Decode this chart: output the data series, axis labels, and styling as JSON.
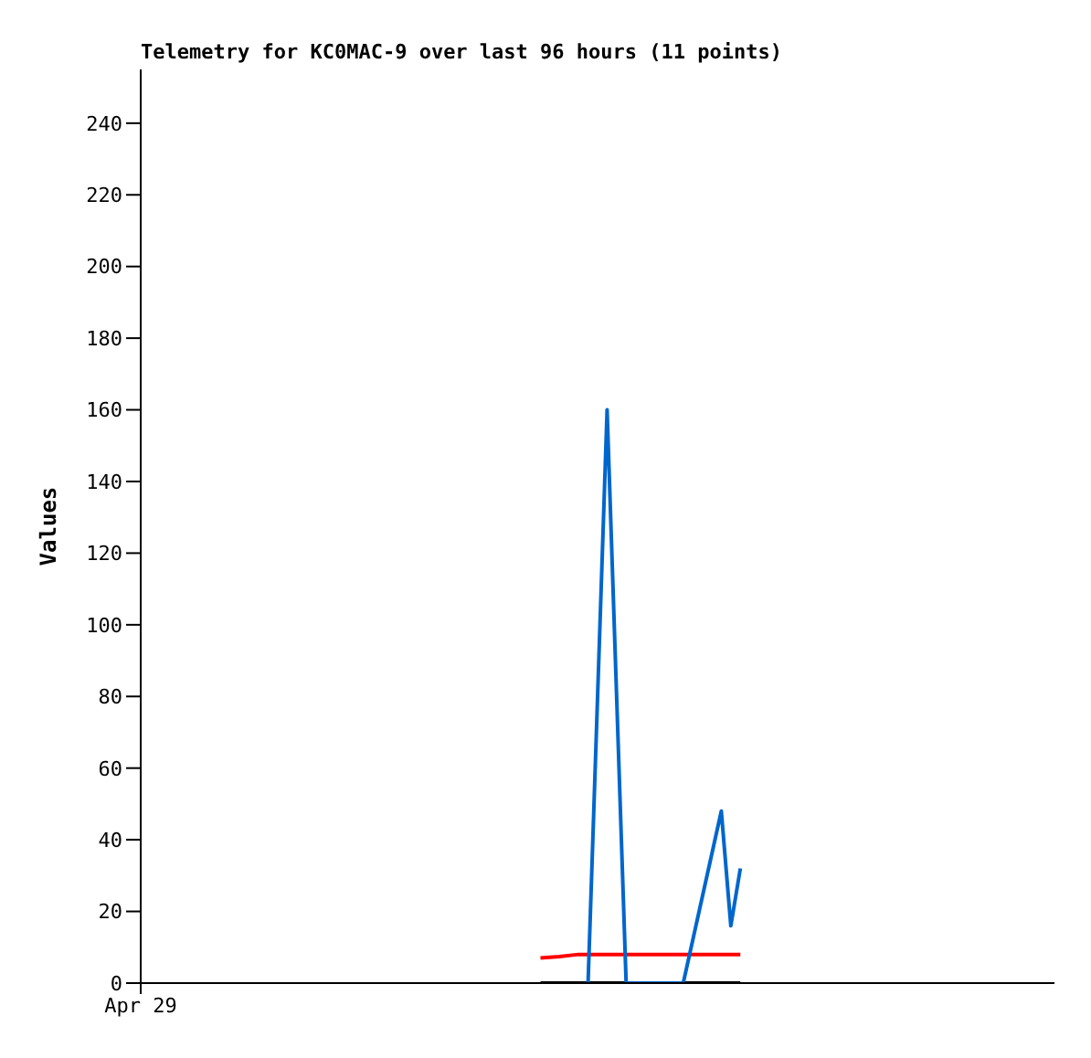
{
  "chart_data": {
    "type": "line",
    "title": "Telemetry for KC0MAC-9 over last 96 hours (11 points)",
    "ylabel": "Values",
    "categories": [
      "Apr 29",
      null,
      null,
      null,
      null,
      null,
      null,
      null,
      null,
      null,
      null,
      null,
      null,
      null,
      null,
      null,
      null,
      null,
      null,
      null,
      null,
      null,
      null,
      null,
      null,
      null,
      null,
      null,
      null,
      null,
      null,
      null,
      null,
      null,
      null,
      null,
      null,
      null,
      null,
      null,
      null,
      null,
      null,
      null,
      null,
      null,
      null,
      null,
      null,
      null,
      null,
      null,
      null,
      null,
      null,
      null,
      null,
      null,
      null,
      null,
      null,
      null,
      null,
      null,
      null,
      null,
      null,
      null,
      null,
      null,
      null,
      null,
      null,
      null,
      null,
      null,
      null,
      null,
      null,
      null,
      null,
      null,
      null,
      null,
      null,
      null,
      null,
      null,
      null,
      null,
      null,
      null,
      null,
      null,
      null,
      null,
      null
    ],
    "ylim": [
      0,
      255
    ],
    "yticks": [
      0,
      20,
      40,
      60,
      80,
      100,
      120,
      140,
      160,
      180,
      200,
      220,
      240
    ],
    "series": [
      {
        "color": "#000000",
        "values": [
          null,
          null,
          null,
          null,
          null,
          null,
          null,
          null,
          null,
          null,
          null,
          null,
          null,
          null,
          null,
          null,
          null,
          null,
          null,
          null,
          null,
          null,
          null,
          null,
          null,
          null,
          null,
          null,
          null,
          null,
          null,
          null,
          null,
          null,
          null,
          null,
          null,
          null,
          null,
          null,
          null,
          null,
          0,
          null,
          null,
          null,
          null,
          null,
          null,
          null,
          null,
          null,
          null,
          null,
          null,
          null,
          null,
          null,
          null,
          null,
          null,
          null,
          null,
          0,
          null,
          null,
          null,
          null,
          null,
          null,
          null,
          null,
          null,
          null,
          null,
          null,
          null,
          null,
          null,
          null,
          null,
          null,
          null,
          null,
          null,
          null,
          null,
          null,
          null,
          null,
          null,
          null,
          null,
          null,
          null,
          null,
          null
        ]
      },
      {
        "color": "#ff0000",
        "values": [
          null,
          null,
          null,
          null,
          null,
          null,
          null,
          null,
          null,
          null,
          null,
          null,
          null,
          null,
          null,
          null,
          null,
          null,
          null,
          null,
          null,
          null,
          null,
          null,
          null,
          null,
          null,
          null,
          null,
          null,
          null,
          null,
          null,
          null,
          null,
          null,
          null,
          null,
          null,
          null,
          null,
          null,
          7,
          null,
          7.4,
          null,
          8,
          null,
          null,
          null,
          null,
          null,
          null,
          null,
          null,
          null,
          null,
          null,
          null,
          null,
          null,
          null,
          null,
          8,
          null,
          null,
          null,
          null,
          null,
          null,
          null,
          null,
          null,
          null,
          null,
          null,
          null,
          null,
          null,
          null,
          null,
          null,
          null,
          null,
          null,
          null,
          null,
          null,
          null,
          null,
          null,
          null,
          null,
          null,
          null,
          null,
          null
        ]
      },
      {
        "color": "#0066cc",
        "values": [
          null,
          null,
          null,
          null,
          null,
          null,
          null,
          null,
          null,
          null,
          null,
          null,
          null,
          null,
          null,
          null,
          null,
          null,
          null,
          null,
          null,
          null,
          null,
          null,
          null,
          null,
          null,
          null,
          null,
          null,
          null,
          null,
          null,
          null,
          null,
          null,
          null,
          null,
          null,
          null,
          null,
          null,
          null,
          null,
          null,
          null,
          null,
          0,
          null,
          160,
          null,
          0,
          null,
          null,
          null,
          null,
          null,
          0,
          null,
          null,
          null,
          48,
          16,
          32,
          null,
          null,
          null,
          null,
          null,
          null,
          null,
          null,
          null,
          null,
          null,
          null,
          null,
          null,
          null,
          null,
          null,
          null,
          null,
          null,
          null,
          null,
          null,
          null,
          null,
          null,
          null,
          null,
          null,
          null,
          null,
          null,
          null
        ]
      }
    ],
    "marker": "none",
    "line_style": "solid"
  }
}
